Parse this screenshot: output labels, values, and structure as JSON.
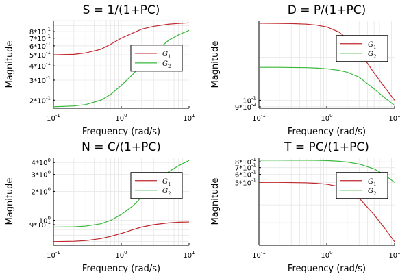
{
  "colors": {
    "g1": "#c0282d",
    "g2": "#38b83a"
  },
  "chart_data": [
    {
      "type": "line",
      "title": "S = 1/(1+PC)",
      "xlabel": "Frequency (rad/s)",
      "ylabel": "Magnitude",
      "xscale": "log",
      "yscale": "log",
      "xlim": [
        0.1,
        10
      ],
      "ylim": [
        0.17,
        1.0
      ],
      "grid": true,
      "legend_position": "right",
      "xticks": [
        {
          "v": 0.1,
          "base": "10",
          "exp": "-1"
        },
        {
          "v": 1,
          "base": "10",
          "exp": "0"
        },
        {
          "v": 10,
          "base": "10",
          "exp": "1"
        }
      ],
      "yticks": [
        {
          "v": 0.2,
          "label": "2*10",
          "exp": "-1"
        },
        {
          "v": 0.3,
          "label": "3*10",
          "exp": "-1"
        },
        {
          "v": 0.4,
          "label": "4*10",
          "exp": "-1"
        },
        {
          "v": 0.5,
          "label": "5*10",
          "exp": "-1"
        },
        {
          "v": 0.6,
          "label": "6*10",
          "exp": "-1"
        },
        {
          "v": 0.7,
          "label": "7*10",
          "exp": "-1"
        },
        {
          "v": 0.8,
          "label": "8*10",
          "exp": "-1"
        }
      ],
      "series": [
        {
          "name": "G",
          "sub": "1",
          "color": "g1",
          "x": [
            0.1,
            0.2,
            0.3,
            0.5,
            0.7,
            1.0,
            1.5,
            2,
            3,
            5,
            7,
            10
          ],
          "y": [
            0.5,
            0.505,
            0.52,
            0.56,
            0.62,
            0.7,
            0.78,
            0.84,
            0.89,
            0.93,
            0.945,
            0.955
          ]
        },
        {
          "name": "G",
          "sub": "2",
          "color": "g2",
          "x": [
            0.1,
            0.2,
            0.3,
            0.5,
            0.7,
            1.0,
            1.5,
            2,
            3,
            5,
            7,
            10
          ],
          "y": [
            0.175,
            0.178,
            0.183,
            0.2,
            0.225,
            0.27,
            0.34,
            0.41,
            0.52,
            0.67,
            0.75,
            0.82
          ]
        }
      ]
    },
    {
      "type": "line",
      "title": "D = P/(1+PC)",
      "xlabel": "Frequency (rad/s)",
      "ylabel": "Magnitude",
      "xscale": "log",
      "yscale": "log",
      "xlim": [
        0.1,
        10
      ],
      "ylim": [
        0.088,
        0.36
      ],
      "grid": true,
      "legend_position": "right",
      "xticks": [
        {
          "v": 0.1,
          "base": "10",
          "exp": "-1"
        },
        {
          "v": 1,
          "base": "10",
          "exp": "0"
        },
        {
          "v": 10,
          "base": "10",
          "exp": "1"
        }
      ],
      "yticks": [
        {
          "v": 0.09,
          "label": "9*10",
          "exp": "-2"
        },
        {
          "v": 0.1,
          "label": "10",
          "exp": "-1"
        }
      ],
      "series": [
        {
          "name": "G",
          "sub": "1",
          "color": "g1",
          "x": [
            0.1,
            0.2,
            0.3,
            0.5,
            0.7,
            1.0,
            1.5,
            2,
            3,
            5,
            7,
            10
          ],
          "y": [
            0.345,
            0.344,
            0.343,
            0.34,
            0.335,
            0.325,
            0.3,
            0.27,
            0.22,
            0.155,
            0.125,
            0.1
          ]
        },
        {
          "name": "G",
          "sub": "2",
          "color": "g2",
          "x": [
            0.1,
            0.2,
            0.3,
            0.5,
            0.7,
            1.0,
            1.5,
            2,
            3,
            5,
            7,
            10
          ],
          "y": [
            0.17,
            0.17,
            0.1695,
            0.169,
            0.168,
            0.166,
            0.162,
            0.157,
            0.145,
            0.12,
            0.105,
            0.092
          ]
        }
      ]
    },
    {
      "type": "line",
      "title": "N = C/(1+PC)",
      "xlabel": "Frequency (rad/s)",
      "ylabel": "Magnitude",
      "xscale": "log",
      "yscale": "log",
      "xlim": [
        0.1,
        10
      ],
      "ylim": [
        0.55,
        4.5
      ],
      "grid": true,
      "legend_position": "right",
      "xticks": [
        {
          "v": 0.1,
          "base": "10",
          "exp": "-1"
        },
        {
          "v": 1,
          "base": "10",
          "exp": "0"
        },
        {
          "v": 10,
          "base": "10",
          "exp": "1"
        }
      ],
      "yticks": [
        {
          "v": 0.9,
          "label": "9*10",
          "exp": "-1"
        },
        {
          "v": 1,
          "label": "10",
          "exp": "0"
        },
        {
          "v": 2,
          "label": "2*10",
          "exp": "0"
        },
        {
          "v": 3,
          "label": "3*10",
          "exp": "0"
        },
        {
          "v": 4,
          "label": "4*10",
          "exp": "0"
        }
      ],
      "series": [
        {
          "name": "G",
          "sub": "1",
          "color": "g1",
          "x": [
            0.1,
            0.2,
            0.3,
            0.5,
            0.7,
            1.0,
            1.5,
            2,
            3,
            5,
            7,
            10
          ],
          "y": [
            0.6,
            0.605,
            0.615,
            0.645,
            0.68,
            0.73,
            0.8,
            0.85,
            0.9,
            0.94,
            0.955,
            0.96
          ]
        },
        {
          "name": "G",
          "sub": "2",
          "color": "g2",
          "x": [
            0.1,
            0.2,
            0.3,
            0.5,
            0.7,
            1.0,
            1.5,
            2,
            3,
            5,
            7,
            10
          ],
          "y": [
            0.85,
            0.855,
            0.87,
            0.92,
            1.0,
            1.15,
            1.42,
            1.75,
            2.35,
            3.2,
            3.7,
            4.2
          ]
        }
      ]
    },
    {
      "type": "line",
      "title": "T = PC/(1+PC)",
      "xlabel": "Frequency (rad/s)",
      "ylabel": "Magnitude",
      "xscale": "log",
      "yscale": "log",
      "xlim": [
        0.1,
        10
      ],
      "ylim": [
        0.12,
        0.88
      ],
      "grid": true,
      "legend_position": "right",
      "xticks": [
        {
          "v": 0.1,
          "base": "10",
          "exp": "-1"
        },
        {
          "v": 1,
          "base": "10",
          "exp": "0"
        },
        {
          "v": 10,
          "base": "10",
          "exp": "1"
        }
      ],
      "yticks": [
        {
          "v": 0.5,
          "label": "5*10",
          "exp": "-1"
        },
        {
          "v": 0.6,
          "label": "6*10",
          "exp": "-1"
        },
        {
          "v": 0.7,
          "label": "7*10",
          "exp": "-1"
        },
        {
          "v": 0.8,
          "label": "8*10",
          "exp": "-1"
        }
      ],
      "series": [
        {
          "name": "G",
          "sub": "1",
          "color": "g1",
          "x": [
            0.1,
            0.2,
            0.3,
            0.5,
            0.7,
            1.0,
            1.5,
            2,
            3,
            5,
            7,
            10
          ],
          "y": [
            0.5,
            0.5,
            0.498,
            0.495,
            0.49,
            0.48,
            0.455,
            0.42,
            0.35,
            0.24,
            0.18,
            0.13
          ]
        },
        {
          "name": "G",
          "sub": "2",
          "color": "g2",
          "x": [
            0.1,
            0.2,
            0.3,
            0.5,
            0.7,
            1.0,
            1.5,
            2,
            3,
            5,
            7,
            10
          ],
          "y": [
            0.83,
            0.83,
            0.829,
            0.828,
            0.826,
            0.822,
            0.81,
            0.795,
            0.76,
            0.68,
            0.6,
            0.5
          ]
        }
      ]
    }
  ]
}
